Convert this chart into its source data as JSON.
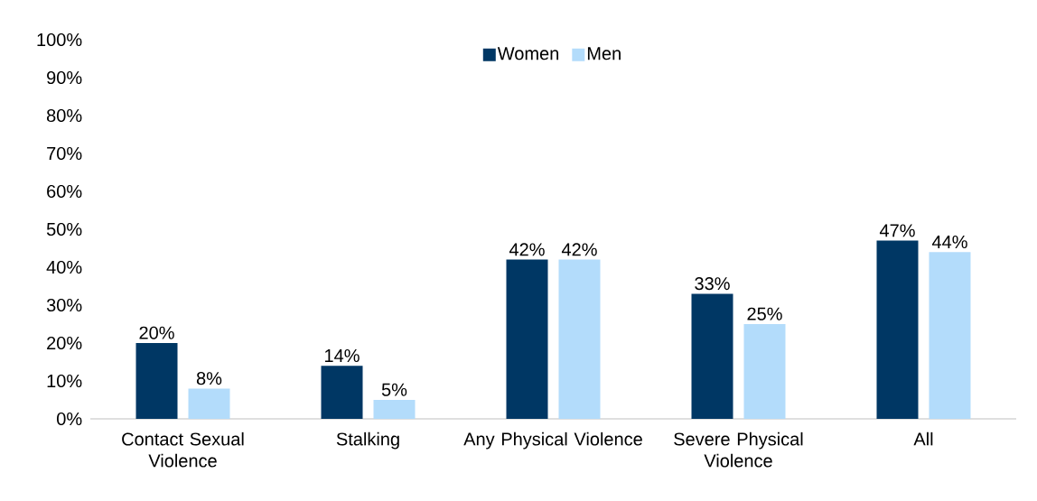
{
  "chart_data": {
    "type": "bar",
    "categories": [
      "Contact Sexual Violence",
      "Stalking",
      "Any Physical Violence",
      "Severe Physical Violence",
      "All"
    ],
    "series": [
      {
        "name": "Women",
        "color": "#003764",
        "values": [
          20,
          14,
          42,
          33,
          47
        ],
        "value_labels": [
          "20%",
          "14%",
          "42%",
          "33%",
          "47%"
        ]
      },
      {
        "name": "Men",
        "color": "#b3dcfb",
        "values": [
          8,
          5,
          42,
          25,
          44
        ],
        "value_labels": [
          "8%",
          "5%",
          "42%",
          "25%",
          "44%"
        ]
      }
    ],
    "ylim": [
      0,
      100
    ],
    "yticks": [
      {
        "value": 0,
        "label": "0%"
      },
      {
        "value": 10,
        "label": "10%"
      },
      {
        "value": 20,
        "label": "20%"
      },
      {
        "value": 30,
        "label": "30%"
      },
      {
        "value": 40,
        "label": "40%"
      },
      {
        "value": 50,
        "label": "50%"
      },
      {
        "value": 60,
        "label": "60%"
      },
      {
        "value": 70,
        "label": "70%"
      },
      {
        "value": 80,
        "label": "80%"
      },
      {
        "value": 90,
        "label": "90%"
      },
      {
        "value": 100,
        "label": "100%"
      }
    ],
    "grid": false,
    "legend": "top"
  }
}
